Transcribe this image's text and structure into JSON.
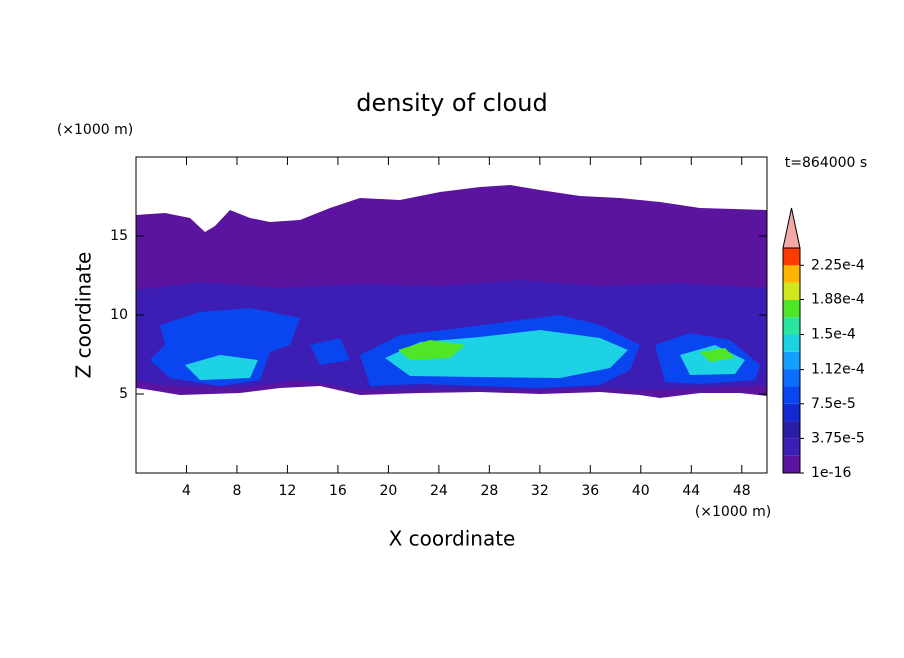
{
  "chart_data": {
    "type": "contour",
    "title": "density of cloud",
    "x_label": "X coordinate",
    "y_label": "Z coordinate",
    "x_unit": "(×1000 m)",
    "y_unit": "(×1000 m)",
    "annotation": "t=864000 s",
    "xlim": [
      0,
      50
    ],
    "xticks": [
      4,
      8,
      12,
      16,
      20,
      24,
      28,
      32,
      36,
      40,
      44,
      48
    ],
    "ylim": [
      0,
      20
    ],
    "yticks": [
      5,
      10,
      15
    ],
    "colorbar": {
      "colors": [
        "#5a14a0",
        "#3c1eb4",
        "#2a1ea8",
        "#1428d2",
        "#0a46f0",
        "#0a6eff",
        "#14a0ff",
        "#1ed2e6",
        "#28e6a0",
        "#50e628",
        "#d2e61e",
        "#ffb400",
        "#ff3c00"
      ],
      "extend_color": "#f4a8a8",
      "lim": [
        1e-16,
        0.00024375
      ],
      "ticks": [
        1e-16,
        {
          "value": 3.75e-05,
          "label": "3.75e-5"
        },
        {
          "value": 7.5e-05,
          "label": "7.5e-5"
        },
        {
          "value": 0.000112,
          "label": "1.12e-4"
        },
        {
          "value": 0.00015,
          "label": "1.5e-4"
        },
        {
          "value": 0.000188,
          "label": "1.88e-4"
        },
        {
          "value": 0.000225,
          "label": "2.25e-4"
        }
      ]
    }
  }
}
